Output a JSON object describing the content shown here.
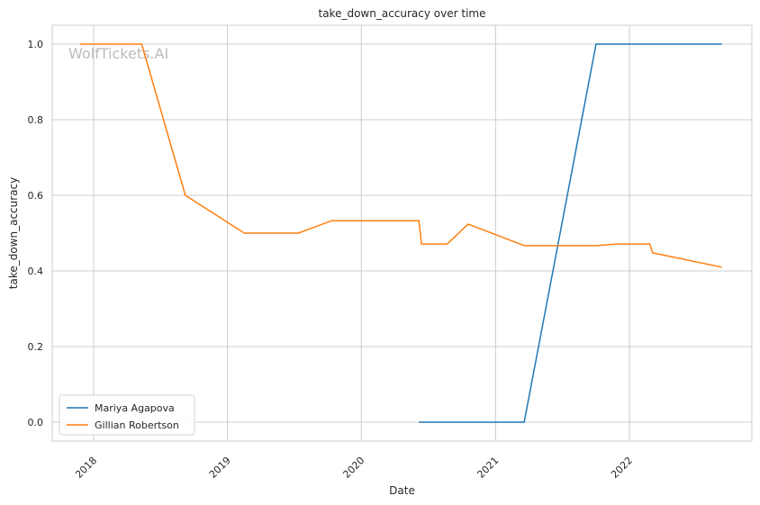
{
  "chart_data": {
    "type": "line",
    "title": "take_down_accuracy over time",
    "xlabel": "Date",
    "ylabel": "take_down_accuracy",
    "watermark": "WolfTickets.AI",
    "x_ticks": [
      "2018",
      "2019",
      "2020",
      "2021",
      "2022"
    ],
    "y_ticks": [
      "0.0",
      "0.2",
      "0.4",
      "0.6",
      "0.8",
      "1.0"
    ],
    "xlim": [
      "2017-09-10",
      "2022-12-01"
    ],
    "ylim": [
      -0.05,
      1.05
    ],
    "grid": true,
    "legend_position": "lower-left",
    "series": [
      {
        "name": "Mariya Agapova",
        "color": "#1f77b4",
        "points": [
          [
            "2020-06-06",
            0.0
          ],
          [
            "2021-03-20",
            0.0
          ],
          [
            "2021-10-02",
            1.0
          ],
          [
            "2022-09-10",
            1.0
          ]
        ]
      },
      {
        "name": "Gillian Robertson",
        "color": "#ff7f0e",
        "points": [
          [
            "2017-11-25",
            1.0
          ],
          [
            "2018-05-12",
            1.0
          ],
          [
            "2018-09-08",
            0.6
          ],
          [
            "2019-02-16",
            0.5
          ],
          [
            "2019-07-13",
            0.5
          ],
          [
            "2019-10-12",
            0.533
          ],
          [
            "2020-06-06",
            0.533
          ],
          [
            "2020-06-13",
            0.471
          ],
          [
            "2020-08-22",
            0.471
          ],
          [
            "2020-10-18",
            0.524
          ],
          [
            "2021-03-20",
            0.467
          ],
          [
            "2021-10-02",
            0.467
          ],
          [
            "2021-11-27",
            0.471
          ],
          [
            "2022-02-26",
            0.471
          ],
          [
            "2022-03-05",
            0.448
          ],
          [
            "2022-09-10",
            0.41
          ]
        ]
      }
    ]
  }
}
